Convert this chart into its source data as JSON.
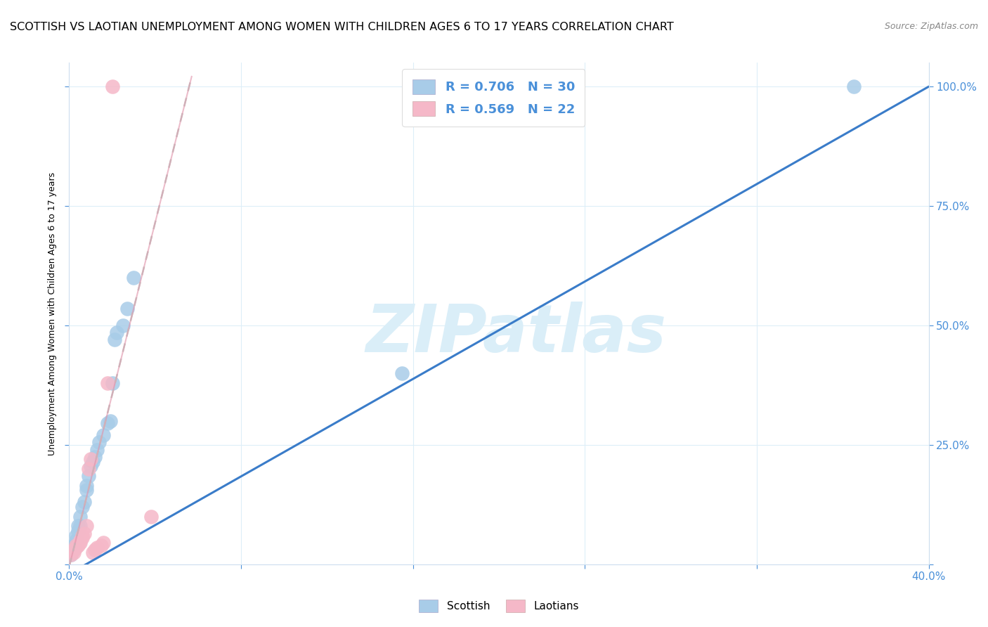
{
  "title": "SCOTTISH VS LAOTIAN UNEMPLOYMENT AMONG WOMEN WITH CHILDREN AGES 6 TO 17 YEARS CORRELATION CHART",
  "source": "Source: ZipAtlas.com",
  "ylabel": "Unemployment Among Women with Children Ages 6 to 17 years",
  "xlim": [
    0.0,
    0.4
  ],
  "ylim": [
    0.0,
    1.05
  ],
  "scottish_x": [
    0.001,
    0.002,
    0.002,
    0.003,
    0.003,
    0.004,
    0.004,
    0.005,
    0.005,
    0.006,
    0.007,
    0.008,
    0.008,
    0.009,
    0.01,
    0.011,
    0.012,
    0.013,
    0.014,
    0.016,
    0.018,
    0.019,
    0.02,
    0.021,
    0.022,
    0.025,
    0.027,
    0.03,
    0.155,
    0.365
  ],
  "scottish_y": [
    0.02,
    0.03,
    0.04,
    0.05,
    0.06,
    0.07,
    0.08,
    0.08,
    0.1,
    0.12,
    0.13,
    0.155,
    0.165,
    0.185,
    0.205,
    0.215,
    0.225,
    0.24,
    0.255,
    0.27,
    0.295,
    0.3,
    0.38,
    0.47,
    0.485,
    0.5,
    0.535,
    0.6,
    0.4,
    1.0
  ],
  "laotian_x": [
    0.001,
    0.002,
    0.002,
    0.003,
    0.003,
    0.004,
    0.005,
    0.005,
    0.006,
    0.006,
    0.007,
    0.008,
    0.009,
    0.01,
    0.011,
    0.012,
    0.013,
    0.015,
    0.016,
    0.018,
    0.02,
    0.038
  ],
  "laotian_y": [
    0.02,
    0.025,
    0.03,
    0.035,
    0.04,
    0.04,
    0.045,
    0.05,
    0.055,
    0.06,
    0.065,
    0.08,
    0.2,
    0.22,
    0.025,
    0.03,
    0.035,
    0.04,
    0.045,
    0.38,
    1.0,
    0.1
  ],
  "scottish_color": "#a8cce8",
  "laotian_color": "#f5b8c8",
  "scottish_line_color": "#3a7cc9",
  "laotian_line_color": "#e090a8",
  "laotian_dash_color": "#d0b0b8",
  "watermark_color": "#daeef8",
  "legend_label_scottish": "Scottish",
  "legend_label_laotian": "Laotians",
  "axis_color": "#4a90d9",
  "grid_color": "#ddeef8",
  "title_fontsize": 11.5
}
